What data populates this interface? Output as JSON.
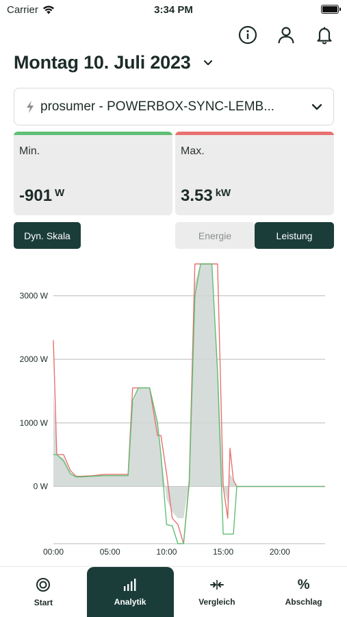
{
  "status_bar": {
    "carrier": "Carrier",
    "time": "3:34 PM"
  },
  "header": {
    "date_title": "Montag 10. Juli 2023"
  },
  "device": {
    "label": "prosumer - POWERBOX-SYNC-LEMB..."
  },
  "stats": {
    "min": {
      "caption": "Min.",
      "value": "-901",
      "unit": "W",
      "accent": "#5fbf74"
    },
    "max": {
      "caption": "Max.",
      "value": "3.53",
      "unit": "kW",
      "accent": "#e8706f"
    }
  },
  "controls": {
    "dyn_scale": "Dyn. Skala",
    "modes": [
      "Energie",
      "Leistung"
    ],
    "active_mode": "Leistung"
  },
  "tabs": [
    {
      "label": "Start",
      "icon": "target-icon"
    },
    {
      "label": "Analytik",
      "icon": "bar-chart-icon"
    },
    {
      "label": "Vergleich",
      "icon": "compare-arrows-icon"
    },
    {
      "label": "Abschlag",
      "icon": "percent-icon"
    }
  ],
  "active_tab": "Analytik",
  "chart_data": {
    "type": "line",
    "title": "",
    "xlabel": "",
    "ylabel": "",
    "x_unit": "hours",
    "xlim": [
      0,
      24
    ],
    "ylim": [
      -900,
      3500
    ],
    "x_ticks": [
      0,
      5,
      10,
      15,
      20
    ],
    "x_tick_labels": [
      "00:00",
      "05:00",
      "10:00",
      "15:00",
      "20:00"
    ],
    "y_ticks": [
      0,
      1000,
      2000,
      3000
    ],
    "y_tick_labels": [
      "0 W",
      "1000 W",
      "2000 W",
      "3000 W"
    ],
    "grid": true,
    "series": [
      {
        "color": "#e8706f",
        "x": [
          0,
          0.3,
          0.9,
          1.5,
          2.0,
          2.5,
          3.5,
          4.5,
          5.5,
          6.0,
          6.6,
          7.0,
          7.5,
          8.0,
          8.5,
          9.2,
          9.5,
          10.0,
          10.5,
          11.0,
          11.5,
          12.0,
          12.5,
          13.0,
          13.5,
          14.0,
          14.5,
          15.0,
          15.4,
          15.6,
          15.9,
          16.2,
          17.0,
          20.0,
          24.0
        ],
        "y": [
          2300,
          500,
          500,
          250,
          160,
          160,
          170,
          190,
          190,
          190,
          190,
          1550,
          1550,
          1550,
          1550,
          800,
          800,
          200,
          -500,
          -600,
          -900,
          100,
          3500,
          3500,
          3500,
          3500,
          3500,
          0,
          -500,
          600,
          100,
          0,
          0,
          0,
          0
        ]
      },
      {
        "color": "#5fbf74",
        "x": [
          0,
          0.3,
          0.9,
          1.5,
          2.0,
          2.5,
          3.5,
          4.5,
          5.5,
          6.0,
          6.6,
          7.0,
          7.5,
          8.0,
          8.5,
          9.2,
          9.5,
          10.0,
          10.5,
          11.0,
          11.5,
          12.0,
          12.5,
          13.0,
          13.5,
          14.0,
          14.5,
          15.0,
          15.4,
          15.6,
          15.9,
          16.2,
          17.0,
          20.0,
          24.0
        ],
        "y": [
          500,
          500,
          400,
          200,
          150,
          150,
          160,
          170,
          170,
          170,
          170,
          1350,
          1550,
          1550,
          1550,
          1000,
          500,
          -600,
          -620,
          -900,
          -900,
          50,
          3000,
          3500,
          3500,
          3500,
          1800,
          -750,
          -750,
          -750,
          -750,
          0,
          0,
          0,
          0
        ]
      },
      {
        "color": "#cfd6d4",
        "area": true,
        "x": [
          0,
          0.3,
          0.9,
          1.5,
          2.0,
          2.5,
          3.5,
          4.5,
          5.5,
          6.0,
          6.6,
          7.0,
          7.5,
          8.0,
          8.5,
          9.2,
          9.5,
          10.0,
          10.5,
          11.0,
          11.5,
          12.0,
          12.5,
          13.0,
          13.5,
          14.0,
          14.5,
          15.0,
          15.4,
          15.6,
          15.9,
          16.2,
          17.0,
          20.0,
          24.0
        ],
        "y": [
          1500,
          500,
          450,
          220,
          150,
          150,
          165,
          180,
          180,
          180,
          180,
          1300,
          1550,
          1550,
          1550,
          1000,
          500,
          -200,
          -400,
          -500,
          -500,
          100,
          3200,
          3500,
          3500,
          3500,
          2000,
          0,
          -250,
          200,
          100,
          0,
          0,
          0,
          0
        ]
      }
    ]
  }
}
